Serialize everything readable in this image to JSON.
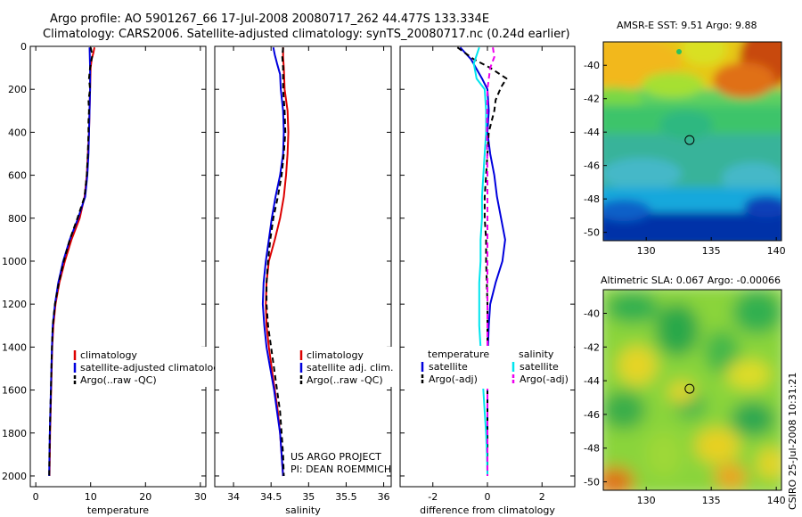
{
  "figure": {
    "title_line1": "Argo profile: AO 5901267_66 17-Jul-2008 20080717_262 44.477S 133.334E",
    "title_line2": "Climatology: CARS2006. Satellite-adjusted climatology: synTS_20080717.nc (0.24d earlier)",
    "credit_line1": "US ARGO PROJECT",
    "credit_line2": "PI: DEAN ROEMMICH",
    "side_label": "CSIRO 25-Jul-2008 10:31:21"
  },
  "colors": {
    "climatology": "#dd0000",
    "satellite": "#0000dd",
    "argo": "#000000",
    "temperature_satellite": "#0000dd",
    "salinity_satellite": "#00e5ee",
    "salinity_argo": "#ee00ee"
  },
  "chart_data": [
    {
      "type": "line",
      "id": "temperature",
      "xlabel": "temperature",
      "ylabel": "",
      "xlim": [
        -1,
        31
      ],
      "ylim": [
        2050,
        0
      ],
      "xticks": [
        0,
        10,
        20,
        30
      ],
      "yticks": [
        0,
        200,
        400,
        600,
        800,
        1000,
        1200,
        1400,
        1600,
        1800,
        2000
      ],
      "legend": [
        "climatology",
        "satellite-adjusted climatology",
        "Argo(..raw -QC)"
      ],
      "legend_position": "lower-right",
      "series": [
        {
          "name": "climatology",
          "style": "solid",
          "color_key": "climatology",
          "points": [
            [
              10.7,
              5
            ],
            [
              10.5,
              30
            ],
            [
              10.2,
              60
            ],
            [
              10.0,
              100
            ],
            [
              9.9,
              200
            ],
            [
              9.8,
              300
            ],
            [
              9.7,
              400
            ],
            [
              9.5,
              500
            ],
            [
              9.3,
              600
            ],
            [
              8.9,
              700
            ],
            [
              8.0,
              800
            ],
            [
              6.5,
              900
            ],
            [
              5.3,
              1000
            ],
            [
              4.3,
              1100
            ],
            [
              3.6,
              1200
            ],
            [
              3.2,
              1300
            ],
            [
              3.0,
              1400
            ],
            [
              2.9,
              1500
            ],
            [
              2.8,
              1600
            ],
            [
              2.7,
              1700
            ],
            [
              2.6,
              1800
            ],
            [
              2.55,
              1900
            ],
            [
              2.5,
              2000
            ]
          ]
        },
        {
          "name": "satellite-adjusted climatology",
          "style": "solid",
          "color_key": "satellite",
          "points": [
            [
              9.8,
              5
            ],
            [
              9.9,
              100
            ],
            [
              9.9,
              200
            ],
            [
              9.8,
              300
            ],
            [
              9.7,
              400
            ],
            [
              9.6,
              500
            ],
            [
              9.4,
              600
            ],
            [
              9.0,
              700
            ],
            [
              7.7,
              800
            ],
            [
              6.2,
              900
            ],
            [
              5.0,
              1000
            ],
            [
              4.1,
              1100
            ],
            [
              3.5,
              1200
            ],
            [
              3.1,
              1300
            ],
            [
              2.95,
              1400
            ],
            [
              2.85,
              1500
            ],
            [
              2.75,
              1600
            ],
            [
              2.65,
              1700
            ],
            [
              2.55,
              1800
            ],
            [
              2.5,
              1900
            ],
            [
              2.45,
              2000
            ]
          ]
        },
        {
          "name": "Argo(..raw -QC)",
          "style": "dashed",
          "color_key": "argo",
          "points": [
            [
              10.0,
              5
            ],
            [
              10.3,
              40
            ],
            [
              9.9,
              100
            ],
            [
              9.7,
              150
            ],
            [
              9.9,
              200
            ],
            [
              9.6,
              250
            ],
            [
              9.7,
              300
            ],
            [
              9.6,
              350
            ],
            [
              9.6,
              400
            ],
            [
              9.5,
              500
            ],
            [
              9.3,
              600
            ],
            [
              8.9,
              700
            ],
            [
              7.6,
              800
            ],
            [
              6.2,
              900
            ],
            [
              5.1,
              1000
            ],
            [
              4.2,
              1100
            ],
            [
              3.5,
              1200
            ],
            [
              3.1,
              1300
            ],
            [
              2.95,
              1400
            ],
            [
              2.85,
              1500
            ],
            [
              2.75,
              1600
            ],
            [
              2.65,
              1700
            ],
            [
              2.55,
              1800
            ],
            [
              2.5,
              1900
            ],
            [
              2.45,
              2000
            ]
          ]
        }
      ]
    },
    {
      "type": "line",
      "id": "salinity",
      "xlabel": "salinity",
      "ylabel": "",
      "xlim": [
        33.75,
        36.1
      ],
      "ylim": [
        2050,
        0
      ],
      "xticks": [
        34,
        34.5,
        35,
        35.5,
        36
      ],
      "yticks": [
        0,
        200,
        400,
        600,
        800,
        1000,
        1200,
        1400,
        1600,
        1800,
        2000
      ],
      "legend": [
        "climatology",
        "satellite adj. clim.",
        "Argo(..raw -QC)"
      ],
      "legend_position": "lower-right",
      "series": [
        {
          "name": "climatology",
          "style": "solid",
          "color_key": "climatology",
          "points": [
            [
              34.66,
              5
            ],
            [
              34.66,
              50
            ],
            [
              34.67,
              100
            ],
            [
              34.68,
              200
            ],
            [
              34.72,
              300
            ],
            [
              34.73,
              400
            ],
            [
              34.72,
              500
            ],
            [
              34.7,
              600
            ],
            [
              34.67,
              700
            ],
            [
              34.62,
              800
            ],
            [
              34.55,
              900
            ],
            [
              34.47,
              1000
            ],
            [
              34.44,
              1100
            ],
            [
              34.43,
              1200
            ],
            [
              34.44,
              1300
            ],
            [
              34.47,
              1400
            ],
            [
              34.51,
              1500
            ],
            [
              34.55,
              1600
            ],
            [
              34.59,
              1700
            ],
            [
              34.62,
              1800
            ],
            [
              34.64,
              1900
            ],
            [
              34.66,
              2000
            ]
          ]
        },
        {
          "name": "satellite adj. clim.",
          "style": "solid",
          "color_key": "satellite",
          "points": [
            [
              34.53,
              5
            ],
            [
              34.55,
              40
            ],
            [
              34.58,
              80
            ],
            [
              34.62,
              130
            ],
            [
              34.63,
              200
            ],
            [
              34.66,
              300
            ],
            [
              34.67,
              400
            ],
            [
              34.66,
              500
            ],
            [
              34.62,
              600
            ],
            [
              34.56,
              700
            ],
            [
              34.51,
              800
            ],
            [
              34.47,
              900
            ],
            [
              34.43,
              1000
            ],
            [
              34.4,
              1100
            ],
            [
              34.39,
              1200
            ],
            [
              34.41,
              1300
            ],
            [
              34.44,
              1400
            ],
            [
              34.49,
              1500
            ],
            [
              34.54,
              1600
            ],
            [
              34.58,
              1700
            ],
            [
              34.62,
              1800
            ],
            [
              34.64,
              1900
            ],
            [
              34.66,
              2000
            ]
          ]
        },
        {
          "name": "Argo(..raw -QC)",
          "style": "dashed",
          "color_key": "argo",
          "points": [
            [
              34.66,
              5
            ],
            [
              34.65,
              50
            ],
            [
              34.66,
              100
            ],
            [
              34.66,
              200
            ],
            [
              34.68,
              300
            ],
            [
              34.69,
              400
            ],
            [
              34.67,
              500
            ],
            [
              34.64,
              600
            ],
            [
              34.59,
              700
            ],
            [
              34.53,
              800
            ],
            [
              34.49,
              900
            ],
            [
              34.46,
              1000
            ],
            [
              34.44,
              1100
            ],
            [
              34.44,
              1200
            ],
            [
              34.46,
              1300
            ],
            [
              34.5,
              1400
            ],
            [
              34.54,
              1500
            ],
            [
              34.58,
              1600
            ],
            [
              34.62,
              1700
            ],
            [
              34.64,
              1800
            ],
            [
              34.66,
              1900
            ],
            [
              34.67,
              2000
            ]
          ]
        }
      ]
    },
    {
      "type": "line",
      "id": "difference",
      "xlabel": "difference from climatology",
      "ylabel": "",
      "xlim": [
        -3.2,
        3.2
      ],
      "ylim": [
        2050,
        0
      ],
      "xticks": [
        -2,
        0,
        2
      ],
      "yticks": [
        0,
        200,
        400,
        600,
        800,
        1000,
        1200,
        1400,
        1600,
        1800,
        2000
      ],
      "legend_headers": [
        "temperature",
        "salinity"
      ],
      "legend": [
        "satellite",
        "Argo(-adj)",
        "satellite",
        "Argo(-adj)"
      ],
      "legend_position": "lower-center",
      "series": [
        {
          "name": "satellite",
          "group": "temperature",
          "style": "solid",
          "color_key": "temperature_satellite",
          "points": [
            [
              -1.0,
              5
            ],
            [
              -0.6,
              60
            ],
            [
              -0.2,
              150
            ],
            [
              0.0,
              200
            ],
            [
              0.05,
              300
            ],
            [
              0.0,
              400
            ],
            [
              0.1,
              500
            ],
            [
              0.25,
              600
            ],
            [
              0.35,
              700
            ],
            [
              0.5,
              800
            ],
            [
              0.65,
              900
            ],
            [
              0.55,
              1000
            ],
            [
              0.3,
              1100
            ],
            [
              0.1,
              1200
            ],
            [
              0.05,
              1300
            ],
            [
              0.02,
              1400
            ],
            [
              0.0,
              1500
            ],
            [
              0.0,
              1700
            ],
            [
              0.0,
              2000
            ]
          ]
        },
        {
          "name": "Argo(-adj)",
          "group": "temperature",
          "style": "dashed",
          "color_key": "argo",
          "points": [
            [
              -1.1,
              5
            ],
            [
              -0.5,
              60
            ],
            [
              0.1,
              100
            ],
            [
              0.7,
              150
            ],
            [
              0.5,
              190
            ],
            [
              0.3,
              250
            ],
            [
              0.25,
              300
            ],
            [
              0.05,
              400
            ],
            [
              0.0,
              500
            ],
            [
              -0.05,
              600
            ],
            [
              -0.1,
              700
            ],
            [
              -0.1,
              800
            ],
            [
              -0.05,
              900
            ],
            [
              -0.05,
              1000
            ],
            [
              0.0,
              1200
            ],
            [
              0.0,
              1500
            ],
            [
              0.0,
              2000
            ]
          ]
        },
        {
          "name": "satellite",
          "group": "salinity",
          "style": "solid",
          "color_key": "salinity_satellite",
          "points": [
            [
              -0.3,
              5
            ],
            [
              -0.5,
              80
            ],
            [
              -0.4,
              150
            ],
            [
              -0.1,
              200
            ],
            [
              -0.05,
              300
            ],
            [
              -0.05,
              400
            ],
            [
              -0.1,
              500
            ],
            [
              -0.15,
              600
            ],
            [
              -0.2,
              700
            ],
            [
              -0.2,
              800
            ],
            [
              -0.25,
              900
            ],
            [
              -0.25,
              1000
            ],
            [
              -0.3,
              1100
            ],
            [
              -0.3,
              1200
            ],
            [
              -0.3,
              1300
            ],
            [
              -0.25,
              1400
            ],
            [
              -0.2,
              1500
            ],
            [
              -0.15,
              1600
            ],
            [
              -0.1,
              1700
            ],
            [
              -0.05,
              1800
            ],
            [
              -0.02,
              1900
            ],
            [
              0.0,
              2000
            ]
          ]
        },
        {
          "name": "Argo(-adj)",
          "group": "salinity",
          "style": "dashed",
          "color_key": "salinity_argo",
          "points": [
            [
              0.2,
              5
            ],
            [
              0.25,
              50
            ],
            [
              0.1,
              100
            ],
            [
              0.0,
              200
            ],
            [
              -0.02,
              400
            ],
            [
              0.0,
              600
            ],
            [
              0.0,
              1000
            ],
            [
              0.0,
              1500
            ],
            [
              0.0,
              2000
            ]
          ]
        }
      ]
    },
    {
      "type": "heatmap",
      "id": "sst_map",
      "title": "AMSR-E SST: 9.51 Argo: 9.88",
      "xlim": [
        126.7,
        140.4
      ],
      "ylim": [
        -50.5,
        -38.6
      ],
      "xticks": [
        130,
        135,
        140
      ],
      "yticks": [
        -40,
        -42,
        -44,
        -46,
        -48,
        -50
      ],
      "marker": {
        "lon": 133.334,
        "lat": -44.477
      }
    },
    {
      "type": "heatmap",
      "id": "sla_map",
      "title": "Altimetric SLA: 0.067 Argo: -0.00066",
      "xlim": [
        126.7,
        140.4
      ],
      "ylim": [
        -50.5,
        -38.6
      ],
      "xticks": [
        130,
        135,
        140
      ],
      "yticks": [
        -40,
        -42,
        -44,
        -46,
        -48,
        -50
      ],
      "marker": {
        "lon": 133.334,
        "lat": -44.477
      }
    }
  ]
}
